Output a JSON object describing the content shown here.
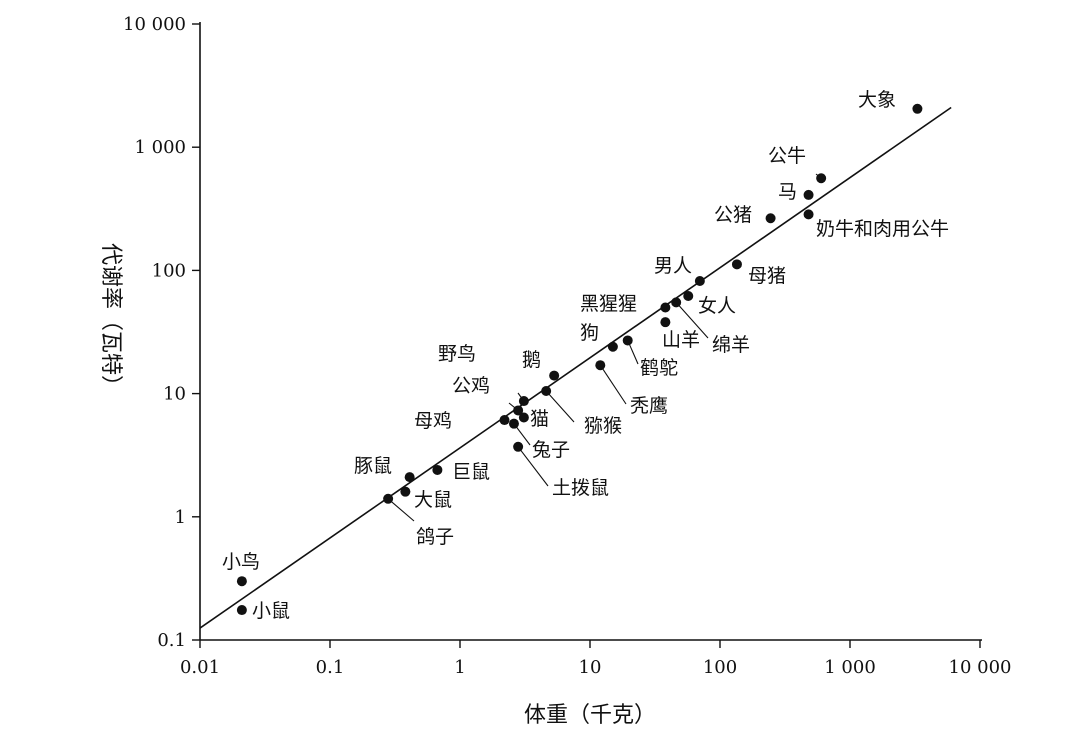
{
  "chart_data": {
    "type": "scatter",
    "xscale": "log",
    "yscale": "log",
    "xlabel": "体重（千克）",
    "ylabel": "代谢率（瓦特）",
    "xlim": [
      0.01,
      10000
    ],
    "ylim": [
      0.1,
      10000
    ],
    "x_ticks": [
      "0.01",
      "0.1",
      "1",
      "10",
      "100",
      "1 000",
      "10 000"
    ],
    "y_ticks": [
      "0.1",
      "1",
      "10",
      "100",
      "1 000",
      "10 000"
    ],
    "fit_line": {
      "x": [
        0.01,
        6000
      ],
      "y": [
        0.125,
        2100
      ]
    },
    "points": [
      {
        "label": "小鼠",
        "x": 0.021,
        "y": 0.175
      },
      {
        "label": "小鸟",
        "x": 0.021,
        "y": 0.3
      },
      {
        "label": "鸽子",
        "x": 0.28,
        "y": 1.4
      },
      {
        "label": "大鼠",
        "x": 0.38,
        "y": 1.6
      },
      {
        "label": "豚鼠",
        "x": 0.41,
        "y": 2.1
      },
      {
        "label": "巨鼠",
        "x": 0.67,
        "y": 2.4
      },
      {
        "label": "母鸡",
        "x": 2.2,
        "y": 6.1
      },
      {
        "label": "兔子",
        "x": 2.6,
        "y": 5.7
      },
      {
        "label": "土拨鼠",
        "x": 2.8,
        "y": 3.7
      },
      {
        "label": "公鸡",
        "x": 2.8,
        "y": 7.3
      },
      {
        "label": "野鸟",
        "x": 3.1,
        "y": 8.7
      },
      {
        "label": "猫",
        "x": 3.1,
        "y": 6.4
      },
      {
        "label": "猕猴",
        "x": 4.6,
        "y": 10.5
      },
      {
        "label": "鹅",
        "x": 5.3,
        "y": 14
      },
      {
        "label": "秃鹰",
        "x": 12,
        "y": 17
      },
      {
        "label": "狗",
        "x": 15,
        "y": 24
      },
      {
        "label": "鹤鸵",
        "x": 19.5,
        "y": 27
      },
      {
        "label": "山羊",
        "x": 38,
        "y": 38
      },
      {
        "label": "黑猩猩",
        "x": 38,
        "y": 50
      },
      {
        "label": "绵羊",
        "x": 46,
        "y": 55
      },
      {
        "label": "女人",
        "x": 57,
        "y": 62
      },
      {
        "label": "男人",
        "x": 70,
        "y": 82
      },
      {
        "label": "母猪",
        "x": 135,
        "y": 112
      },
      {
        "label": "公猪",
        "x": 245,
        "y": 265
      },
      {
        "label": "奶牛和肉用公牛",
        "x": 480,
        "y": 285
      },
      {
        "label": "马",
        "x": 480,
        "y": 410
      },
      {
        "label": "公牛",
        "x": 600,
        "y": 560
      },
      {
        "label": "大象",
        "x": 3300,
        "y": 2050
      }
    ]
  }
}
